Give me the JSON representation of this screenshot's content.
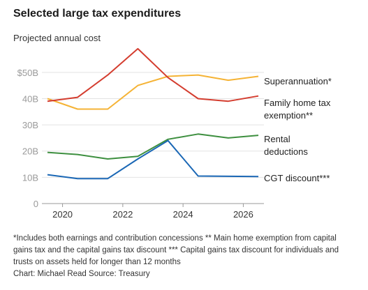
{
  "header": {
    "title": "Selected large tax expenditures",
    "subtitle": "Projected annual cost"
  },
  "footer": {
    "footnote": "*Includes both earnings and contribution concessions ** Main home exemption from capital gains tax and the capital gains tax discount *** Capital gains tax discount for individuals and trusts on assets held for longer than 12 months",
    "credit": "Chart: Michael Read  Source: Treasury"
  },
  "chart_data": {
    "type": "line",
    "x": [
      2019.5,
      2020.5,
      2021.5,
      2022.5,
      2023.5,
      2024.5,
      2025.5,
      2026.5
    ],
    "xticks": [
      2020,
      2022,
      2024,
      2026
    ],
    "xtick_labels": [
      "2020",
      "2022",
      "2024",
      "2026"
    ],
    "ylim": [
      0,
      55
    ],
    "yticks": [
      0,
      10,
      20,
      30,
      40,
      50
    ],
    "ytick_labels": [
      "0",
      "10B",
      "20B",
      "30B",
      "40B",
      "$50B"
    ],
    "grid": true,
    "series": [
      {
        "name": "Superannuation*",
        "label_lines": [
          "Superannuation*"
        ],
        "color": "#f5b335",
        "values": [
          40,
          36,
          36,
          45,
          48.5,
          49,
          47,
          48.5
        ]
      },
      {
        "name": "Family home tax exemption**",
        "label_lines": [
          "Family home tax",
          "exemption**"
        ],
        "color": "#d43d2f",
        "values": [
          39,
          40.5,
          49,
          59,
          48,
          40,
          39,
          41
        ]
      },
      {
        "name": "Rental deductions",
        "label_lines": [
          "Rental",
          "deductions"
        ],
        "color": "#3d8f3f",
        "values": [
          19.5,
          18.7,
          17,
          18,
          24.5,
          26.5,
          25,
          26
        ]
      },
      {
        "name": "CGT discount***",
        "label_lines": [
          "CGT discount***"
        ],
        "color": "#1a67b5",
        "values": [
          11,
          9.5,
          9.5,
          17,
          24,
          10.5,
          10.4,
          10.3
        ]
      }
    ]
  }
}
